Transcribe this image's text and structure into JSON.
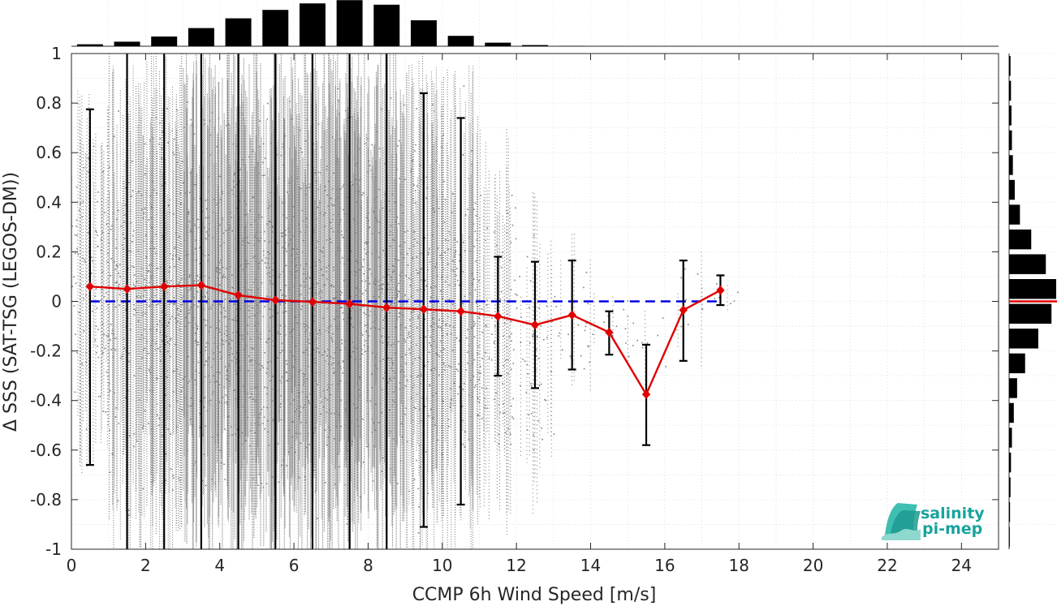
{
  "chart_data": {
    "type": "scatter",
    "xlabel": "CCMP 6h Wind Speed [m/s]",
    "ylabel": "Δ SSS (SAT-TSG (LEGOS-DM))",
    "xlim": [
      0,
      25
    ],
    "ylim": [
      -1,
      1
    ],
    "xticks": [
      0,
      2,
      4,
      6,
      8,
      10,
      12,
      14,
      16,
      18,
      20,
      22,
      24
    ],
    "yticks": [
      -1,
      -0.8,
      -0.6,
      -0.4,
      -0.2,
      0,
      0.2,
      0.4,
      0.6,
      0.8,
      1
    ],
    "xtick_labels": [
      "0",
      "2",
      "4",
      "6",
      "8",
      "10",
      "12",
      "14",
      "16",
      "18",
      "20",
      "22",
      "24"
    ],
    "ytick_labels": [
      "-1",
      "-0.8",
      "-0.6",
      "-0.4",
      "-0.2",
      "0",
      "0.2",
      "0.4",
      "0.6",
      "0.8",
      "1"
    ],
    "grid": true,
    "zero_line": 0,
    "bin_centers": [
      0.5,
      1.5,
      2.5,
      3.5,
      4.5,
      5.5,
      6.5,
      7.5,
      8.5,
      9.5,
      10.5,
      11.5,
      12.5,
      13.5,
      14.5,
      15.5,
      16.5,
      17.5
    ],
    "bin_mean": [
      0.06,
      0.05,
      0.06,
      0.065,
      0.025,
      0.005,
      -0.002,
      -0.01,
      -0.025,
      -0.032,
      -0.04,
      -0.06,
      -0.095,
      -0.055,
      -0.125,
      -0.375,
      -0.035,
      0.045
    ],
    "bin_std_low": [
      -0.66,
      -1.0,
      -1.0,
      -1.0,
      -1.0,
      -1.0,
      -1.0,
      -1.0,
      -1.0,
      -0.91,
      -0.82,
      -0.3,
      -0.35,
      -0.275,
      -0.215,
      -0.58,
      -0.24,
      -0.015
    ],
    "bin_std_high": [
      0.775,
      1.0,
      1.0,
      1.0,
      1.0,
      1.0,
      1.0,
      1.0,
      1.0,
      0.84,
      0.74,
      0.18,
      0.16,
      0.165,
      -0.04,
      -0.175,
      0.165,
      0.105
    ],
    "scatter_extent": [
      {
        "x": 0.5,
        "min": -0.7,
        "max": 0.9,
        "density": 0.35
      },
      {
        "x": 1.5,
        "min": -1.0,
        "max": 1.0,
        "density": 0.55
      },
      {
        "x": 2.5,
        "min": -1.0,
        "max": 1.0,
        "density": 0.8
      },
      {
        "x": 3.5,
        "min": -1.0,
        "max": 1.0,
        "density": 1.0
      },
      {
        "x": 4.5,
        "min": -1.0,
        "max": 1.0,
        "density": 1.0
      },
      {
        "x": 5.5,
        "min": -1.0,
        "max": 1.0,
        "density": 1.0
      },
      {
        "x": 6.5,
        "min": -1.0,
        "max": 1.0,
        "density": 1.0
      },
      {
        "x": 7.5,
        "min": -1.0,
        "max": 1.0,
        "density": 1.0
      },
      {
        "x": 8.5,
        "min": -1.0,
        "max": 1.0,
        "density": 0.9
      },
      {
        "x": 9.5,
        "min": -1.0,
        "max": 1.0,
        "density": 0.75
      },
      {
        "x": 10.5,
        "min": -1.0,
        "max": 0.95,
        "density": 0.55
      },
      {
        "x": 11.5,
        "min": -0.95,
        "max": 0.7,
        "density": 0.32
      },
      {
        "x": 12.5,
        "min": -0.9,
        "max": 0.45,
        "density": 0.16
      },
      {
        "x": 13.5,
        "min": -0.4,
        "max": 0.3,
        "density": 0.06
      },
      {
        "x": 14.5,
        "min": -0.2,
        "max": 0.05,
        "density": 0.02
      },
      {
        "x": 15.5,
        "min": -0.35,
        "max": 0.0,
        "density": 0.01
      },
      {
        "x": 16.5,
        "min": -0.3,
        "max": 0.2,
        "density": 0.01
      },
      {
        "x": 17.5,
        "min": -0.05,
        "max": 0.08,
        "density": 0.005
      }
    ],
    "x_histogram_relative": [
      0.03,
      0.07,
      0.15,
      0.28,
      0.43,
      0.56,
      0.66,
      0.71,
      0.64,
      0.4,
      0.16,
      0.055,
      0.018,
      0.006,
      0.002,
      0.001,
      0.001,
      0.0
    ],
    "y_histogram_bin_centers": [
      0.95,
      0.85,
      0.75,
      0.65,
      0.55,
      0.45,
      0.35,
      0.25,
      0.15,
      0.05,
      -0.05,
      -0.15,
      -0.25,
      -0.35,
      -0.45,
      -0.55,
      -0.65,
      -0.75,
      -0.85,
      -0.95
    ],
    "y_histogram_relative": [
      0.03,
      0.04,
      0.05,
      0.06,
      0.08,
      0.12,
      0.23,
      0.47,
      0.78,
      1.0,
      0.9,
      0.62,
      0.34,
      0.17,
      0.1,
      0.06,
      0.04,
      0.03,
      0.02,
      0.015
    ],
    "y_histogram_mean_marker": 0,
    "colors": {
      "scatter": "#808080",
      "mean_line": "#e00000",
      "error_bars": "#000000",
      "zero_line": "#0000e6",
      "histogram": "#000000"
    }
  },
  "logo": {
    "line1": "salinity",
    "line2": "pi-mep",
    "color": "#18a39c"
  }
}
